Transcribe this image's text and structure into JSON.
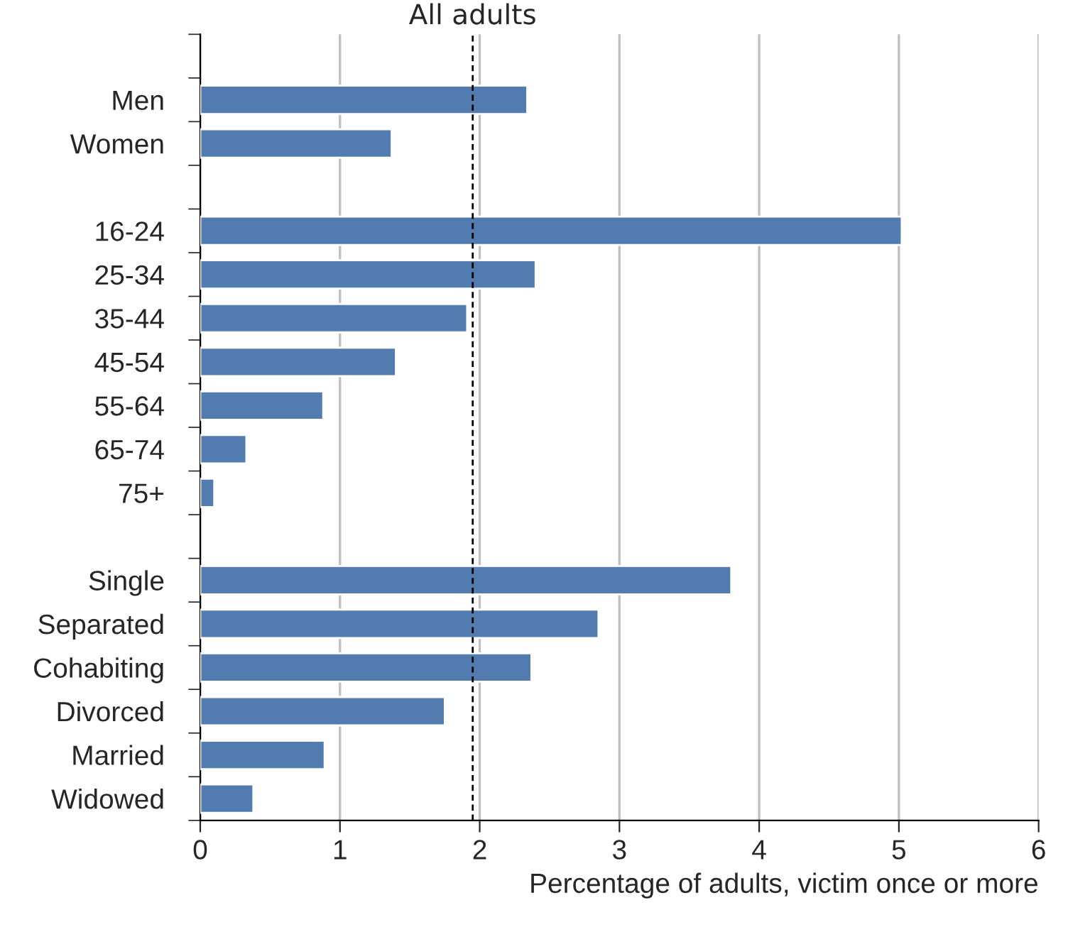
{
  "chart_data": {
    "type": "bar",
    "orientation": "horizontal",
    "xlabel": "Percentage of adults, victim once or more",
    "categories": [
      null,
      "Men",
      "Women",
      null,
      "16-24",
      "25-34",
      "35-44",
      "45-54",
      "55-64",
      "65-74",
      "75+",
      null,
      "Single",
      "Separated",
      "Cohabiting",
      "Divorced",
      "Married",
      "Widowed"
    ],
    "values": [
      null,
      2.34,
      1.37,
      null,
      5.02,
      2.4,
      1.91,
      1.4,
      0.88,
      0.33,
      0.1,
      null,
      3.8,
      2.85,
      2.37,
      1.75,
      0.89,
      0.38
    ],
    "color": "#527bb0",
    "xlim": [
      0,
      6
    ],
    "xticks": [
      0,
      1,
      2,
      3,
      4,
      5,
      6
    ],
    "grid": "x",
    "ref_lines": [
      {
        "axis": "x",
        "value": 1.95,
        "label": "All adults",
        "color": "#000000",
        "line_style": "dashed"
      }
    ]
  }
}
